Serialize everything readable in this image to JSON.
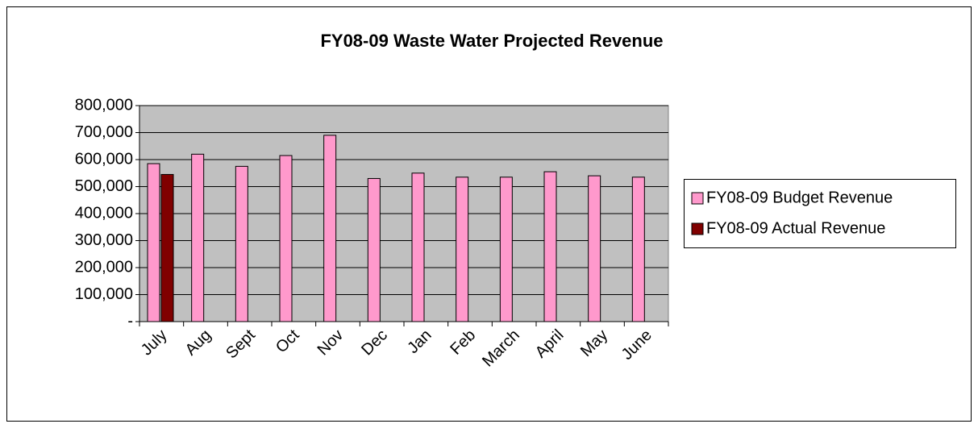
{
  "chart_data": {
    "type": "bar",
    "title": "FY08-09 Waste Water Projected Revenue",
    "categories": [
      "July",
      "Aug",
      "Sept",
      "Oct",
      "Nov",
      "Dec",
      "Jan",
      "Feb",
      "March",
      "April",
      "May",
      "June"
    ],
    "series": [
      {
        "name": "FY08-09 Budget Revenue",
        "color": "#ff99cc",
        "values": [
          585000,
          620000,
          575000,
          615000,
          690000,
          530000,
          550000,
          535000,
          535000,
          555000,
          540000,
          535000
        ]
      },
      {
        "name": "FY08-09 Actual Revenue",
        "color": "#800000",
        "values": [
          545000,
          null,
          null,
          null,
          null,
          null,
          null,
          null,
          null,
          null,
          null,
          null
        ]
      }
    ],
    "ylim": [
      0,
      800000
    ],
    "yticks": [
      {
        "value": 0,
        "label": "-"
      },
      {
        "value": 100000,
        "label": "100,000"
      },
      {
        "value": 200000,
        "label": "200,000"
      },
      {
        "value": 300000,
        "label": "300,000"
      },
      {
        "value": 400000,
        "label": "400,000"
      },
      {
        "value": 500000,
        "label": "500,000"
      },
      {
        "value": 600000,
        "label": "600,000"
      },
      {
        "value": 700000,
        "label": "700,000"
      },
      {
        "value": 800000,
        "label": "800,000"
      }
    ],
    "grid": true,
    "legend": "right",
    "plot_background": "#c0c0c0"
  }
}
